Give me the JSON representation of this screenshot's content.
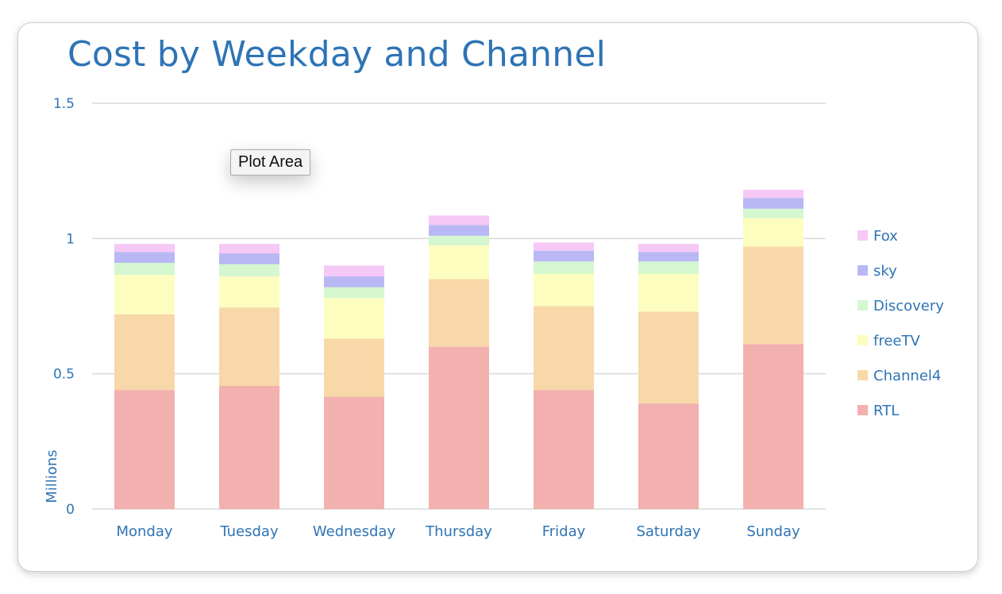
{
  "chart_data": {
    "type": "bar",
    "stacked": true,
    "title": "Cost by Weekday and Channel",
    "xlabel": "",
    "ylabel": "Millions",
    "ylim": [
      0,
      1.5
    ],
    "yticks": [
      "0",
      "0.5",
      "1",
      "1.5"
    ],
    "ytick_values": [
      0,
      0.5,
      1,
      1.5
    ],
    "grid": true,
    "legend_position": "right",
    "categories": [
      "Monday",
      "Tuesday",
      "Wednesday",
      "Thursday",
      "Friday",
      "Saturday",
      "Sunday"
    ],
    "series": [
      {
        "name": "RTL",
        "color": "#f2b0ae",
        "values": [
          0.44,
          0.455,
          0.415,
          0.6,
          0.44,
          0.39,
          0.61
        ]
      },
      {
        "name": "Channel4",
        "color": "#f8d8a8",
        "values": [
          0.28,
          0.29,
          0.215,
          0.25,
          0.31,
          0.34,
          0.36
        ]
      },
      {
        "name": "freeTV",
        "color": "#fdfdc0",
        "values": [
          0.145,
          0.115,
          0.15,
          0.125,
          0.12,
          0.14,
          0.105
        ]
      },
      {
        "name": "Discovery",
        "color": "#d4f7cf",
        "values": [
          0.045,
          0.045,
          0.04,
          0.035,
          0.045,
          0.045,
          0.035
        ]
      },
      {
        "name": "sky",
        "color": "#b9b8f4",
        "values": [
          0.04,
          0.04,
          0.04,
          0.04,
          0.04,
          0.035,
          0.04
        ]
      },
      {
        "name": "Fox",
        "color": "#f5c8f5",
        "values": [
          0.03,
          0.035,
          0.04,
          0.035,
          0.03,
          0.03,
          0.03
        ]
      }
    ]
  },
  "tooltip": "Plot Area",
  "colors": {
    "text": "#2e74b5",
    "grid": "#d9d9d9"
  }
}
